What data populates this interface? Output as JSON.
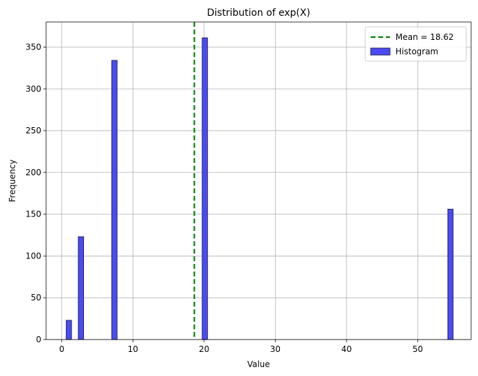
{
  "chart_data": {
    "type": "bar",
    "subtype": "histogram",
    "title": "Distribution of exp(X)",
    "xlabel": "Value",
    "ylabel": "Frequency",
    "xlim": [
      -2.2,
      57.5
    ],
    "ylim": [
      0,
      380
    ],
    "xticks": [
      0,
      10,
      20,
      30,
      40,
      50
    ],
    "yticks": [
      0,
      50,
      100,
      150,
      200,
      250,
      300,
      350
    ],
    "grid": true,
    "bin_width": 0.74,
    "bars": [
      {
        "x": 1.0,
        "value": 23
      },
      {
        "x": 2.7,
        "value": 123
      },
      {
        "x": 7.4,
        "value": 334
      },
      {
        "x": 20.1,
        "value": 361
      },
      {
        "x": 54.6,
        "value": 156
      }
    ],
    "bar_color": "#4b4bf5",
    "bar_edge_color": "#1f1f5a",
    "mean_line": {
      "value": 18.62,
      "color": "#008000",
      "style": "dashed"
    },
    "legend": {
      "placement": "top-right",
      "entries": [
        {
          "label": "Mean = 18.62",
          "kind": "line",
          "color": "#008000"
        },
        {
          "label": "Histogram",
          "kind": "patch",
          "color": "#4b4bf5"
        }
      ]
    }
  }
}
